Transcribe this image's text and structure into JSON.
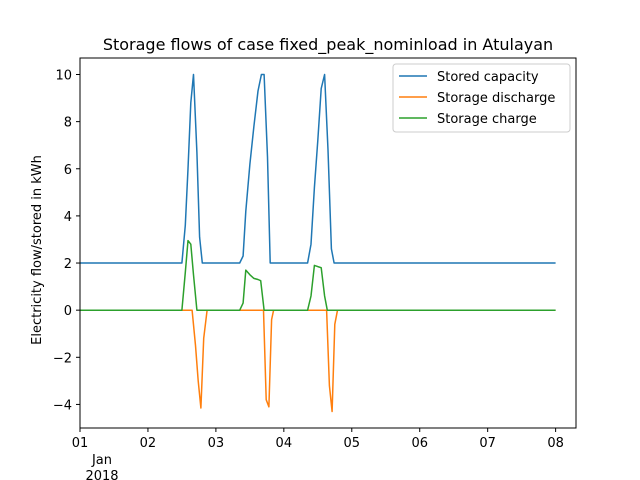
{
  "chart_data": {
    "type": "line",
    "title": "Storage flows of case fixed_peak_nominload in Atulayan",
    "xlabel": "",
    "ylabel": "Electricity flow/stored in kWh",
    "xlim": [
      0,
      7.3
    ],
    "ylim": [
      -5.0,
      10.7
    ],
    "xticks": [
      {
        "value": 0,
        "label": "01"
      },
      {
        "value": 1,
        "label": "02"
      },
      {
        "value": 2,
        "label": "03"
      },
      {
        "value": 3,
        "label": "04"
      },
      {
        "value": 4,
        "label": "05"
      },
      {
        "value": 5,
        "label": "06"
      },
      {
        "value": 6,
        "label": "07"
      },
      {
        "value": 7,
        "label": "08"
      }
    ],
    "xtick_sublabels": [
      "Jan",
      "2018"
    ],
    "yticks": [
      {
        "value": -4,
        "label": "−4"
      },
      {
        "value": -2,
        "label": "−2"
      },
      {
        "value": 0,
        "label": "0"
      },
      {
        "value": 2,
        "label": "2"
      },
      {
        "value": 4,
        "label": "4"
      },
      {
        "value": 6,
        "label": "6"
      },
      {
        "value": 8,
        "label": "8"
      },
      {
        "value": 10,
        "label": "10"
      }
    ],
    "grid": false,
    "legend": "top-right",
    "series": [
      {
        "name": "Stored capacity",
        "color": "#1f77b4",
        "points": [
          [
            0,
            2
          ],
          [
            1.5,
            2
          ],
          [
            1.55,
            3.6
          ],
          [
            1.59,
            6.0
          ],
          [
            1.63,
            8.8
          ],
          [
            1.67,
            10.0
          ],
          [
            1.72,
            6.7
          ],
          [
            1.76,
            3.1
          ],
          [
            1.8,
            2
          ],
          [
            2.35,
            2
          ],
          [
            2.4,
            2.3
          ],
          [
            2.44,
            4.2
          ],
          [
            2.5,
            6.2
          ],
          [
            2.56,
            7.8
          ],
          [
            2.62,
            9.3
          ],
          [
            2.67,
            10.0
          ],
          [
            2.71,
            10.0
          ],
          [
            2.76,
            6.5
          ],
          [
            2.8,
            2
          ],
          [
            3.35,
            2
          ],
          [
            3.4,
            2.8
          ],
          [
            3.45,
            5.2
          ],
          [
            3.5,
            7.2
          ],
          [
            3.55,
            9.4
          ],
          [
            3.6,
            10.0
          ],
          [
            3.65,
            6.8
          ],
          [
            3.7,
            2.6
          ],
          [
            3.74,
            2
          ],
          [
            7.0,
            2
          ]
        ]
      },
      {
        "name": "Storage discharge",
        "color": "#ff7f0e",
        "points": [
          [
            0,
            0
          ],
          [
            1.65,
            0
          ],
          [
            1.7,
            -1.5
          ],
          [
            1.74,
            -3.0
          ],
          [
            1.78,
            -4.15
          ],
          [
            1.82,
            -1.2
          ],
          [
            1.87,
            0
          ],
          [
            2.7,
            0
          ],
          [
            2.74,
            -3.8
          ],
          [
            2.78,
            -4.1
          ],
          [
            2.82,
            -0.4
          ],
          [
            2.85,
            0
          ],
          [
            3.63,
            0
          ],
          [
            3.67,
            -3.2
          ],
          [
            3.71,
            -4.3
          ],
          [
            3.75,
            -0.6
          ],
          [
            3.79,
            0
          ],
          [
            7.0,
            0
          ]
        ]
      },
      {
        "name": "Storage charge",
        "color": "#2ca02c",
        "points": [
          [
            0,
            0
          ],
          [
            1.5,
            0
          ],
          [
            1.55,
            1.6
          ],
          [
            1.59,
            2.95
          ],
          [
            1.63,
            2.8
          ],
          [
            1.67,
            1.5
          ],
          [
            1.72,
            0
          ],
          [
            2.35,
            0
          ],
          [
            2.4,
            0.3
          ],
          [
            2.44,
            1.7
          ],
          [
            2.5,
            1.5
          ],
          [
            2.56,
            1.35
          ],
          [
            2.62,
            1.3
          ],
          [
            2.66,
            1.25
          ],
          [
            2.71,
            0
          ],
          [
            3.35,
            0
          ],
          [
            3.4,
            0.6
          ],
          [
            3.45,
            1.9
          ],
          [
            3.5,
            1.85
          ],
          [
            3.55,
            1.8
          ],
          [
            3.6,
            0.6
          ],
          [
            3.64,
            0
          ],
          [
            7.0,
            0
          ]
        ]
      }
    ]
  }
}
